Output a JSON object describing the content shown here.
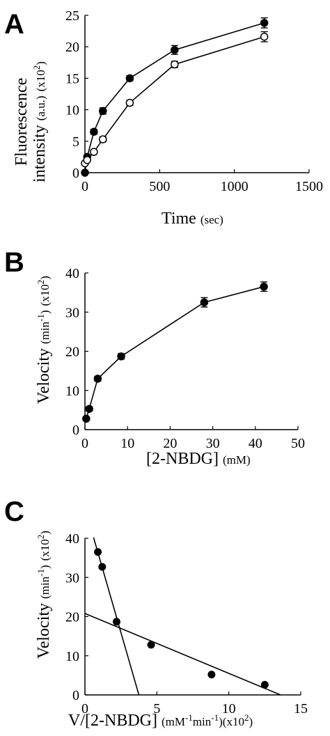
{
  "chart_data": [
    {
      "panel": "A",
      "type": "line",
      "xlabel": "Time",
      "xlabel_unit": "(sec)",
      "ylabel_line1": "Fluorescence",
      "ylabel_line2": "intensity",
      "ylabel_unit": "(a.u.)",
      "ylabel_scale": "(x10",
      "ylabel_scale_exp": "2",
      "ylabel_scale_close": ")",
      "xlim": [
        0,
        1500
      ],
      "ylim": [
        0,
        25
      ],
      "xticks": [
        "0",
        "500",
        "1000",
        "1500"
      ],
      "yticks": [
        "0",
        "5",
        "10",
        "15",
        "20",
        "25"
      ],
      "series": [
        {
          "marker": "filled-circle",
          "x": [
            0,
            15,
            60,
            120,
            300,
            600,
            1200
          ],
          "y": [
            0,
            2.5,
            6.5,
            9.8,
            15.0,
            19.5,
            23.8
          ],
          "err": [
            0.2,
            0.3,
            0.4,
            0.5,
            0.4,
            0.7,
            0.8
          ]
        },
        {
          "marker": "open-circle",
          "x": [
            0,
            15,
            60,
            120,
            300,
            600,
            1200
          ],
          "y": [
            1.5,
            2.0,
            3.3,
            5.3,
            11.1,
            17.2,
            21.6
          ],
          "err": [
            0.2,
            0.2,
            0.3,
            0.4,
            0.4,
            0.5,
            0.8
          ]
        }
      ]
    },
    {
      "panel": "B",
      "type": "line",
      "xlabel": "[2-NBDG]",
      "xlabel_unit": "(mM)",
      "ylabel": "Velocity",
      "ylabel_unit": "(min",
      "ylabel_unit_exp": "-1",
      "ylabel_unit_close": ")",
      "ylabel_scale": "(x10",
      "ylabel_scale_exp": "2",
      "ylabel_scale_close": ")",
      "xlim": [
        0,
        50
      ],
      "ylim": [
        0,
        40
      ],
      "xticks": [
        "0",
        "10",
        "20",
        "30",
        "40",
        "50"
      ],
      "yticks": [
        "0",
        "10",
        "20",
        "30",
        "40"
      ],
      "series": [
        {
          "marker": "filled-circle",
          "x": [
            0.3,
            1,
            3,
            8.5,
            28,
            42
          ],
          "y": [
            2.8,
            5.3,
            13.0,
            18.7,
            32.5,
            36.5
          ],
          "err": [
            0.4,
            0.5,
            0.6,
            0.7,
            1.2,
            1.2
          ]
        }
      ]
    },
    {
      "panel": "C",
      "type": "scatter",
      "xlabel": "V/[2-NBDG]",
      "xlabel_unit1": "(mM",
      "xlabel_unit1_exp": "-1",
      "xlabel_unit2": "min",
      "xlabel_unit2_exp": "-1",
      "xlabel_unit_close": ")",
      "xlabel_scale": "(x10",
      "xlabel_scale_exp": "2",
      "xlabel_scale_close": ")",
      "ylabel": "Velocity",
      "ylabel_unit": "(min",
      "ylabel_unit_exp": "-1",
      "ylabel_unit_close": ")",
      "ylabel_scale": "(x10",
      "ylabel_scale_exp": "2",
      "ylabel_scale_close": ")",
      "xlim": [
        0,
        15
      ],
      "ylim": [
        0,
        40
      ],
      "xticks": [
        "0",
        "5",
        "10",
        "15"
      ],
      "yticks": [
        "0",
        "10",
        "20",
        "30",
        "40"
      ],
      "points": {
        "x": [
          0.9,
          1.2,
          2.2,
          4.6,
          8.8,
          12.5
        ],
        "y": [
          36.5,
          32.7,
          18.7,
          12.8,
          5.2,
          2.6
        ]
      },
      "fit_lines": [
        {
          "x": [
            0.6,
            3.75
          ],
          "y": [
            40.2,
            0
          ]
        },
        {
          "x": [
            0,
            13.6
          ],
          "y": [
            20.8,
            0
          ]
        }
      ]
    }
  ]
}
